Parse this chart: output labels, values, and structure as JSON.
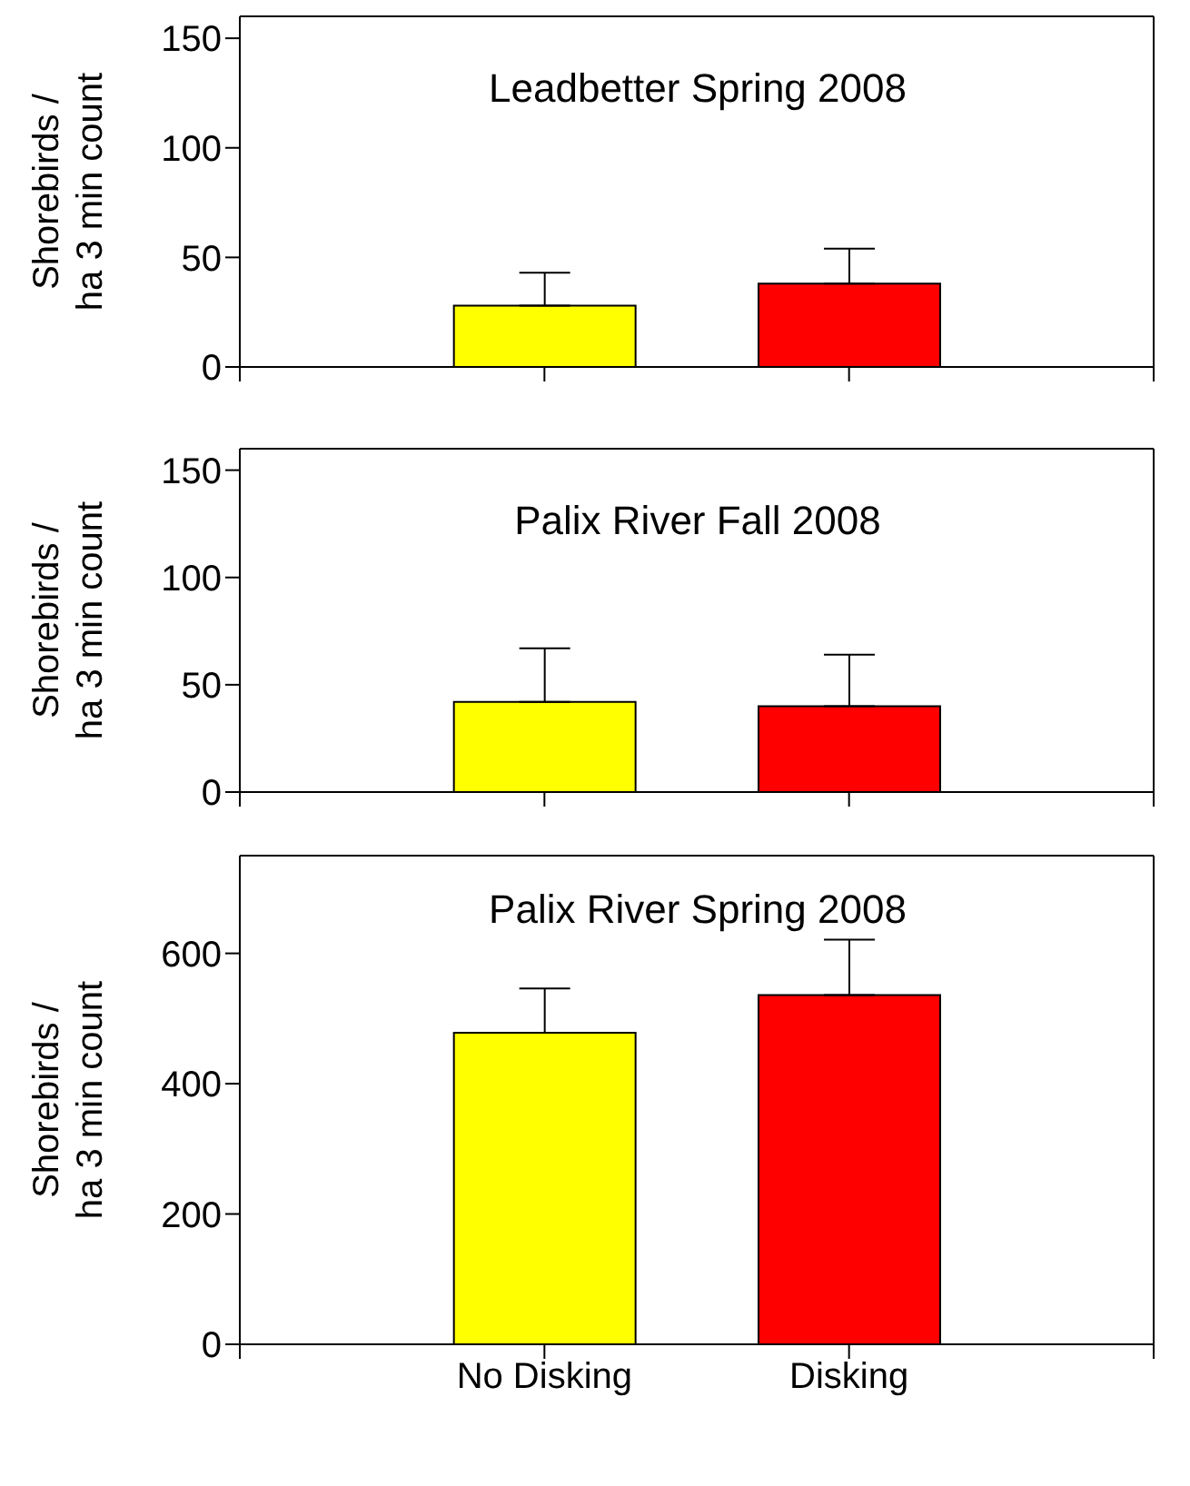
{
  "chart_data": [
    {
      "type": "bar",
      "title": "Leadbetter Spring 2008",
      "ylabel": "Shorebirds /\nha 3 min count",
      "categories": [
        null,
        null
      ],
      "values": [
        28,
        38
      ],
      "colors": [
        "#ffff00",
        "#ff0000"
      ],
      "errors": [
        [
          28,
          43
        ],
        [
          38,
          54
        ]
      ],
      "ylim": [
        0,
        160
      ],
      "yticks": [
        0,
        50,
        100,
        150
      ],
      "tick_labels": "y",
      "grid": false,
      "legend": false
    },
    {
      "type": "bar",
      "title": "Palix River Fall 2008",
      "ylabel": "Shorebirds /\nha 3 min count",
      "categories": [
        null,
        null
      ],
      "values": [
        42,
        40
      ],
      "colors": [
        "#ffff00",
        "#ff0000"
      ],
      "errors": [
        [
          42,
          67
        ],
        [
          40,
          64
        ]
      ],
      "ylim": [
        0,
        160
      ],
      "yticks": [
        0,
        50,
        100,
        150
      ],
      "tick_labels": "y",
      "grid": false,
      "legend": false
    },
    {
      "type": "bar",
      "title": "Palix River Spring 2008",
      "ylabel": "Shorebirds /\nha 3 min count",
      "categories": [
        "No Disking",
        "Disking"
      ],
      "values": [
        478,
        536
      ],
      "colors": [
        "#ffff00",
        "#ff0000"
      ],
      "errors": [
        [
          478,
          546
        ],
        [
          536,
          621
        ]
      ],
      "ylim": [
        0,
        750
      ],
      "yticks": [
        0,
        200,
        400,
        600
      ],
      "grid": false,
      "legend": false
    }
  ]
}
